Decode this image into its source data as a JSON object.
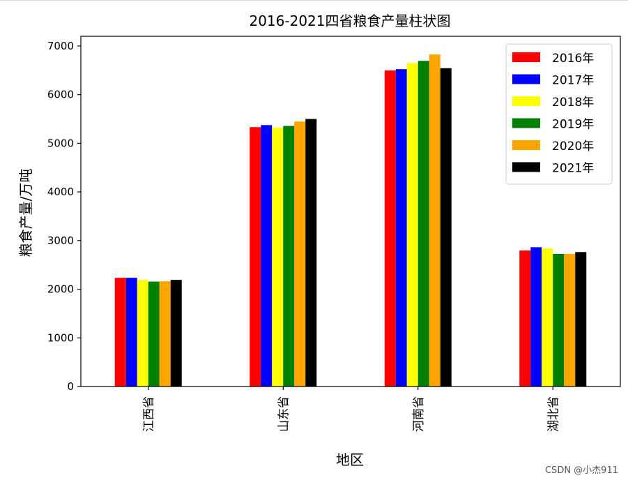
{
  "chart_data": {
    "type": "bar",
    "title": "2016-2021四省粮食产量柱状图",
    "xlabel": "地区",
    "ylabel": "粮食产量/万吨",
    "ylim": [
      0,
      7200
    ],
    "yticks": [
      0,
      1000,
      2000,
      3000,
      4000,
      5000,
      6000,
      7000
    ],
    "categories": [
      "江西省",
      "山东省",
      "河南省",
      "湖北省"
    ],
    "legend_position": "top-right",
    "grid": false,
    "series": [
      {
        "name": "2016年",
        "color": "#ff0000",
        "values": [
          2235,
          5332,
          6498,
          2796
        ]
      },
      {
        "name": "2017年",
        "color": "#0000ff",
        "values": [
          2235,
          5374,
          6524,
          2864
        ]
      },
      {
        "name": "2018年",
        "color": "#ffff00",
        "values": [
          2191,
          5320,
          6649,
          2839
        ]
      },
      {
        "name": "2019年",
        "color": "#008000",
        "values": [
          2157,
          5357,
          6695,
          2725
        ]
      },
      {
        "name": "2020年",
        "color": "#ffa500",
        "values": [
          2164,
          5447,
          6826,
          2727
        ]
      },
      {
        "name": "2021年",
        "color": "#000000",
        "values": [
          2192,
          5500,
          6544,
          2764
        ]
      }
    ]
  },
  "watermark": "CSDN @小杰911"
}
